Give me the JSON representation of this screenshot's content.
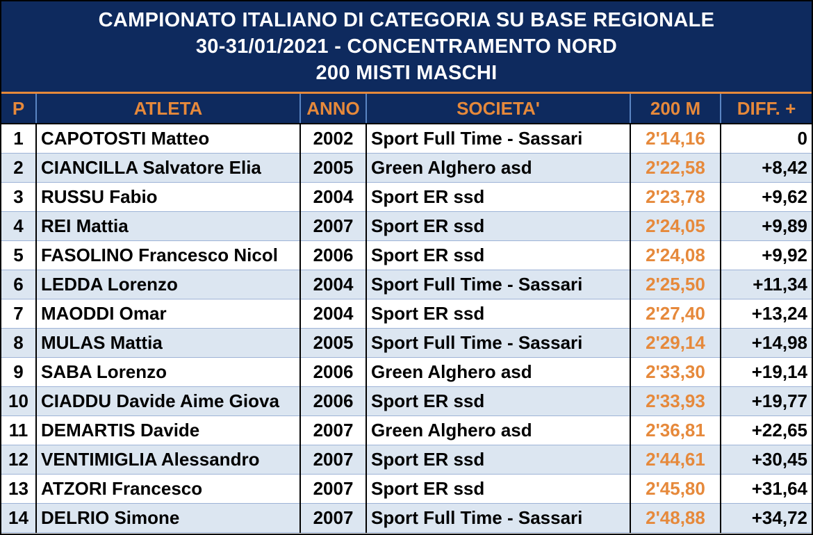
{
  "title": {
    "line1": "CAMPIONATO ITALIANO DI CATEGORIA SU BASE REGIONALE",
    "line2": "30-31/01/2021 - CONCENTRAMENTO NORD",
    "line3": "200 MISTI MASCHI"
  },
  "colors": {
    "header_bg": "#0e2a5e",
    "accent": "#e6893b",
    "row_alt": "#dce6f1"
  },
  "columns": [
    "P",
    "ATLETA",
    "ANNO",
    "SOCIETA'",
    "200 M",
    "DIFF. +"
  ],
  "rows": [
    {
      "p": "1",
      "name": "CAPOTOSTI Matteo",
      "year": "2002",
      "team": "Sport Full Time - Sassari",
      "time": "2'14,16",
      "diff": "0"
    },
    {
      "p": "2",
      "name": "CIANCILLA Salvatore Elia",
      "year": "2005",
      "team": "Green Alghero asd",
      "time": "2'22,58",
      "diff": "+8,42"
    },
    {
      "p": "3",
      "name": "RUSSU Fabio",
      "year": "2004",
      "team": "Sport ER ssd",
      "time": "2'23,78",
      "diff": "+9,62"
    },
    {
      "p": "4",
      "name": "REI Mattia",
      "year": "2007",
      "team": "Sport ER ssd",
      "time": "2'24,05",
      "diff": "+9,89"
    },
    {
      "p": "5",
      "name": "FASOLINO Francesco Nicol",
      "year": "2006",
      "team": "Sport ER ssd",
      "time": "2'24,08",
      "diff": "+9,92"
    },
    {
      "p": "6",
      "name": "LEDDA Lorenzo",
      "year": "2004",
      "team": "Sport Full Time - Sassari",
      "time": "2'25,50",
      "diff": "+11,34"
    },
    {
      "p": "7",
      "name": "MAODDI Omar",
      "year": "2004",
      "team": "Sport ER ssd",
      "time": "2'27,40",
      "diff": "+13,24"
    },
    {
      "p": "8",
      "name": "MULAS Mattia",
      "year": "2005",
      "team": "Sport Full Time - Sassari",
      "time": "2'29,14",
      "diff": "+14,98"
    },
    {
      "p": "9",
      "name": "SABA Lorenzo",
      "year": "2006",
      "team": "Green Alghero asd",
      "time": "2'33,30",
      "diff": "+19,14"
    },
    {
      "p": "10",
      "name": "CIADDU Davide Aime Giova",
      "year": "2006",
      "team": "Sport ER ssd",
      "time": "2'33,93",
      "diff": "+19,77"
    },
    {
      "p": "11",
      "name": "DEMARTIS Davide",
      "year": "2007",
      "team": "Green Alghero asd",
      "time": "2'36,81",
      "diff": "+22,65"
    },
    {
      "p": "12",
      "name": "VENTIMIGLIA Alessandro",
      "year": "2007",
      "team": "Sport ER ssd",
      "time": "2'44,61",
      "diff": "+30,45"
    },
    {
      "p": "13",
      "name": "ATZORI Francesco",
      "year": "2007",
      "team": "Sport ER ssd",
      "time": "2'45,80",
      "diff": "+31,64"
    },
    {
      "p": "14",
      "name": "DELRIO Simone",
      "year": "2007",
      "team": "Sport Full Time - Sassari",
      "time": "2'48,88",
      "diff": "+34,72"
    }
  ]
}
